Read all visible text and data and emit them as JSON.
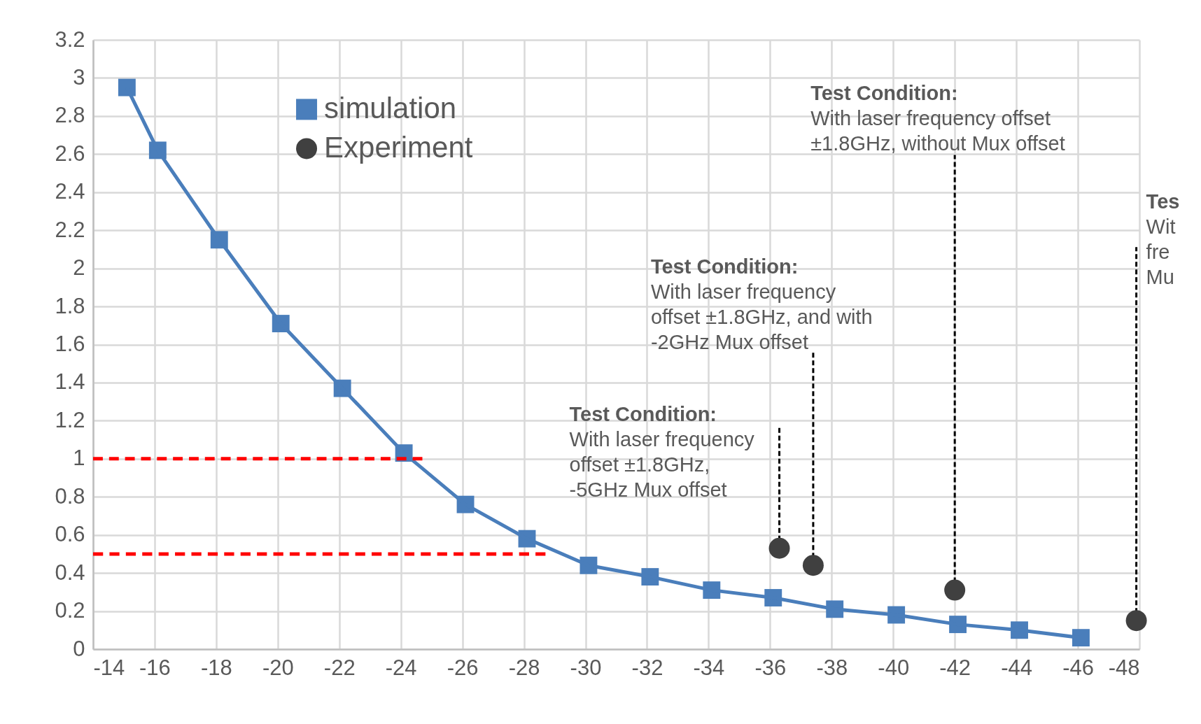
{
  "chart_data": {
    "type": "line",
    "xlim": [
      -14,
      -48
    ],
    "xticks": [
      -14,
      -16,
      -18,
      -20,
      -22,
      -24,
      -26,
      -28,
      -30,
      -32,
      -34,
      -36,
      -38,
      -40,
      -42,
      -44,
      -46,
      -48
    ],
    "ylim": [
      0,
      3.2
    ],
    "yticks": [
      0,
      0.2,
      0.4,
      0.6,
      0.8,
      1,
      1.2,
      1.4,
      1.6,
      1.8,
      2,
      2.2,
      2.4,
      2.6,
      2.8,
      3,
      3.2
    ],
    "grid": true,
    "legend": "top left",
    "series": [
      {
        "name": "simulation",
        "marker": "square",
        "color": "#4a7ebb",
        "x": [
          -15.1,
          -16.1,
          -18.1,
          -20.1,
          -22.1,
          -24.1,
          -26.1,
          -28.1,
          -30.1,
          -32.1,
          -34.1,
          -36.1,
          -38.1,
          -40.1,
          -42.1,
          -44.1,
          -46.1
        ],
        "values": [
          2.95,
          2.62,
          2.15,
          1.71,
          1.37,
          1.03,
          0.76,
          0.58,
          0.44,
          0.38,
          0.31,
          0.27,
          0.21,
          0.18,
          0.13,
          0.1,
          0.06
        ]
      },
      {
        "name": "Experiment",
        "type": "scatter",
        "marker": "circle",
        "color": "#404040",
        "x": [
          -36.3,
          -37.4,
          -42,
          -47.9
        ],
        "values": [
          0.53,
          0.44,
          0.31,
          0.15
        ]
      },
      {
        "marker": "none",
        "line_style": "dashed",
        "color": "#ff0000",
        "x": [
          -14,
          -24.7
        ],
        "values": [
          1,
          1
        ]
      },
      {
        "marker": "none",
        "line_style": "dashed",
        "color": "#ff0000",
        "x": [
          -14,
          -28.7
        ],
        "values": [
          0.5,
          0.5
        ]
      }
    ],
    "annotations": [
      {
        "text": "Test Condition:\nWith laser frequency\noffset ±1.8GHz,\n-5GHz Mux offset",
        "x": -36.3,
        "y": 0.53
      },
      {
        "text": "Test Condition:\nWith laser frequency\noffset ±1.8GHz, and with\n    -2GHz Mux offset",
        "x": -37.4,
        "y": 0.44
      },
      {
        "text": "Test Condition:\nWith laser frequency offset\n±1.8GHz, without Mux offset",
        "x": -42,
        "y": 0.31
      },
      {
        "text": "Tes\nWit\nfre\nMu",
        "x": -47.9,
        "y": 0.15
      }
    ]
  }
}
